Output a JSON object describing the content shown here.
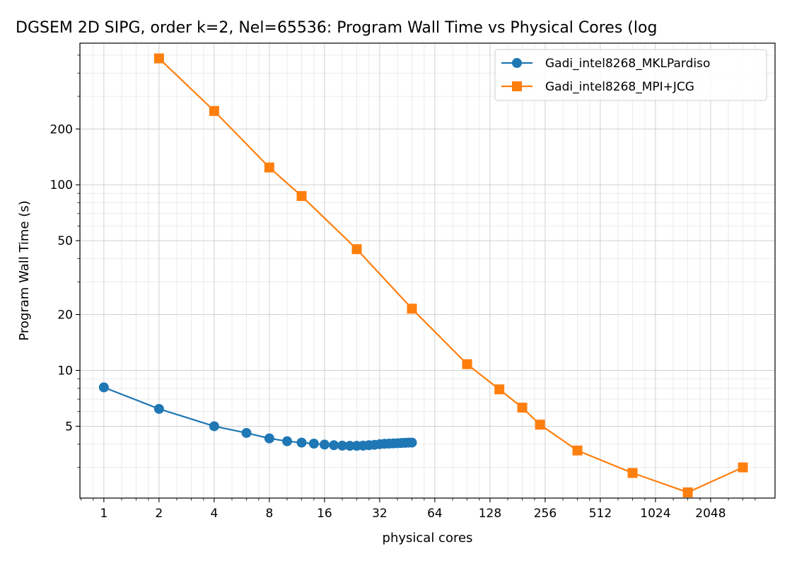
{
  "chart_data": {
    "type": "line",
    "title": "DGSEM 2D SIPG, order k=2, Nel=65536: Program Wall Time vs Physical Cores (log",
    "xlabel": "physical cores",
    "ylabel": "Program Wall Time (s)",
    "xscale": "log2",
    "yscale": "log",
    "xlim": [
      0.74,
      4600
    ],
    "ylim": [
      2.05,
      580
    ],
    "xticks": [
      1,
      2,
      4,
      8,
      16,
      32,
      64,
      128,
      256,
      512,
      1024,
      2048
    ],
    "xtick_labels": [
      "1",
      "2",
      "4",
      "8",
      "16",
      "32",
      "64",
      "128",
      "256",
      "512",
      "1024",
      "2048"
    ],
    "yticks": [
      5,
      10,
      20,
      50,
      100,
      200
    ],
    "ytick_labels": [
      "5",
      "10",
      "20",
      "50",
      "100",
      "200"
    ],
    "grid": true,
    "legend_position": "top-right",
    "series": [
      {
        "name": "Gadi_intel8268_MKLPardiso",
        "color": "#1f77b4",
        "marker": "circle",
        "x": [
          1,
          2,
          4,
          6,
          8,
          10,
          12,
          14,
          16,
          18,
          20,
          22,
          24,
          26,
          28,
          30,
          32,
          34,
          36,
          38,
          40,
          42,
          44,
          46,
          48
        ],
        "y": [
          8.1,
          6.2,
          5.0,
          4.6,
          4.3,
          4.15,
          4.08,
          4.03,
          3.98,
          3.95,
          3.93,
          3.92,
          3.92,
          3.93,
          3.95,
          3.97,
          4.0,
          4.02,
          4.03,
          4.04,
          4.05,
          4.06,
          4.07,
          4.08,
          4.08
        ]
      },
      {
        "name": "Gadi_intel8268_MPI+JCG",
        "color": "#ff7f0e",
        "marker": "square",
        "x": [
          2,
          4,
          8,
          12,
          24,
          48,
          96,
          144,
          192,
          240,
          384,
          768,
          1536,
          3072
        ],
        "y": [
          480,
          250,
          124,
          87,
          45,
          21.5,
          10.8,
          7.9,
          6.3,
          5.1,
          3.7,
          2.8,
          2.2,
          3.0
        ]
      }
    ]
  }
}
